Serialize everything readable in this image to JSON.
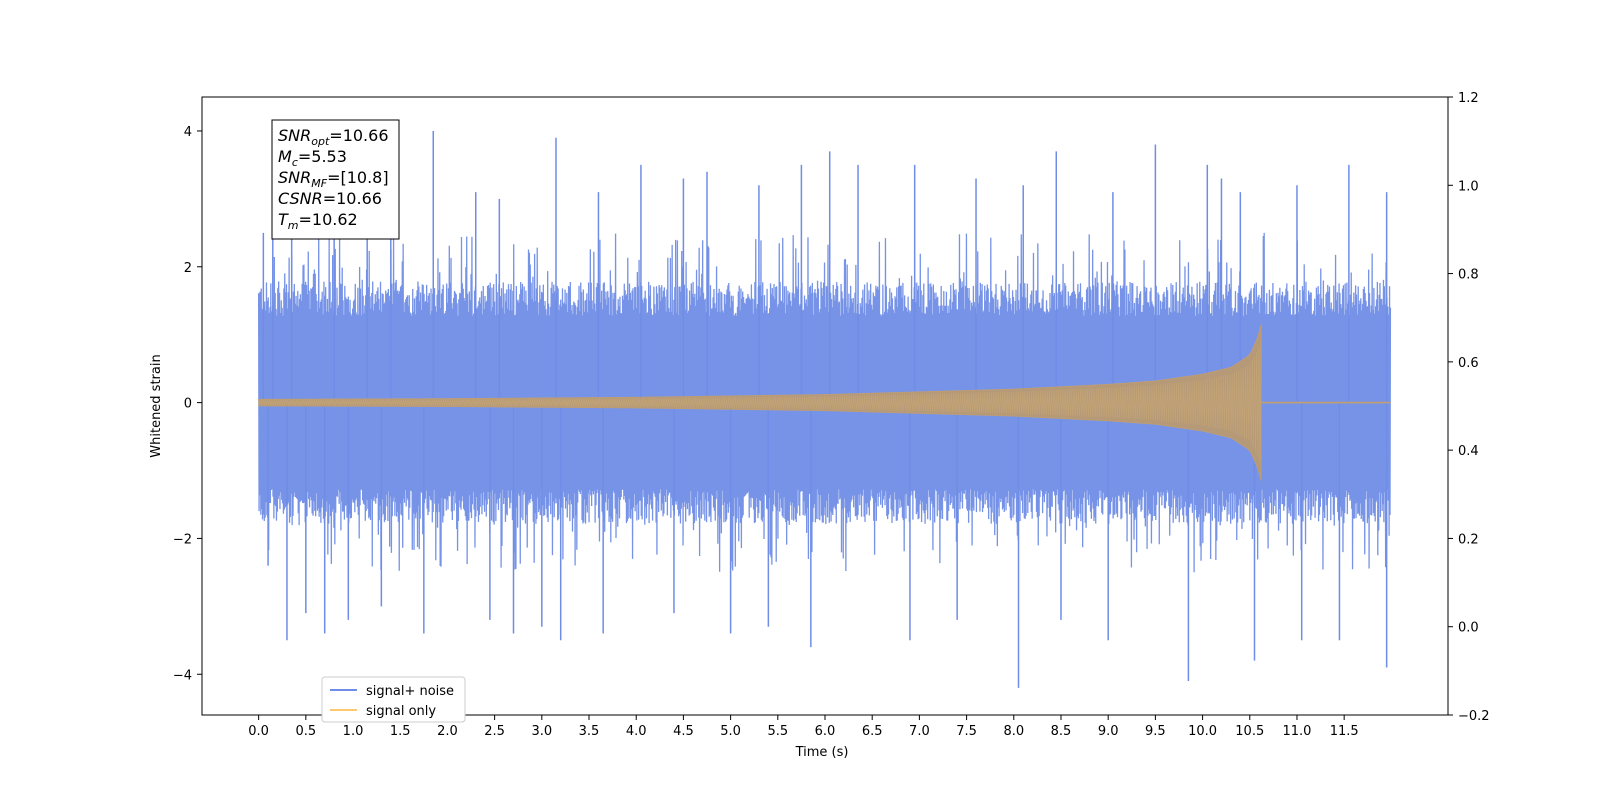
{
  "chart_data": {
    "type": "line",
    "xlabel": "Time (s)",
    "ylabel": "Whitened strain",
    "xlim": [
      -0.6,
      12.6
    ],
    "ylim": [
      -4.6,
      4.5
    ],
    "y2lim": [
      -0.2,
      1.2
    ],
    "grid": false,
    "x_ticks": [
      "0.0",
      "0.5",
      "1.0",
      "1.5",
      "2.0",
      "2.5",
      "3.0",
      "3.5",
      "4.0",
      "4.5",
      "5.0",
      "5.5",
      "6.0",
      "6.5",
      "7.0",
      "7.5",
      "8.0",
      "8.5",
      "9.0",
      "9.5",
      "10.0",
      "10.5",
      "11.0",
      "11.5"
    ],
    "y_ticks": [
      "4",
      "2",
      "0",
      "−2",
      "−4"
    ],
    "y2_ticks": [
      "1.2",
      "1.0",
      "0.8",
      "0.6",
      "0.4",
      "0.2",
      "0.0",
      "−0.2"
    ],
    "legend_position": "lower-left",
    "series": [
      {
        "name": "signal+ noise",
        "color": "#6f8de6",
        "x_range": [
          0.0,
          11.99
        ],
        "body_amplitude": 1.7,
        "peak_max": [
          [
            0.05,
            2.5
          ],
          [
            0.15,
            2.6
          ],
          [
            0.35,
            2.8
          ],
          [
            0.8,
            3.2
          ],
          [
            1.15,
            3.4
          ],
          [
            1.4,
            3.2
          ],
          [
            1.85,
            4.0
          ],
          [
            2.3,
            3.1
          ],
          [
            2.55,
            3.0
          ],
          [
            3.15,
            3.9
          ],
          [
            3.6,
            3.1
          ],
          [
            4.05,
            3.5
          ],
          [
            4.5,
            3.3
          ],
          [
            4.75,
            3.4
          ],
          [
            5.3,
            3.2
          ],
          [
            5.75,
            3.5
          ],
          [
            6.05,
            3.7
          ],
          [
            6.35,
            3.5
          ],
          [
            6.95,
            3.5
          ],
          [
            7.6,
            3.3
          ],
          [
            8.1,
            3.2
          ],
          [
            8.45,
            3.7
          ],
          [
            9.05,
            3.1
          ],
          [
            9.5,
            3.8
          ],
          [
            10.05,
            3.5
          ],
          [
            10.2,
            3.3
          ],
          [
            10.4,
            3.1
          ],
          [
            11.0,
            3.2
          ],
          [
            11.55,
            3.5
          ],
          [
            11.95,
            3.1
          ]
        ],
        "peak_min": [
          [
            0.1,
            -2.4
          ],
          [
            0.3,
            -3.5
          ],
          [
            0.5,
            -3.1
          ],
          [
            0.7,
            -3.4
          ],
          [
            0.95,
            -3.2
          ],
          [
            1.3,
            -3.0
          ],
          [
            1.75,
            -3.4
          ],
          [
            2.45,
            -3.2
          ],
          [
            2.7,
            -3.4
          ],
          [
            3.0,
            -3.3
          ],
          [
            3.2,
            -3.5
          ],
          [
            3.65,
            -3.4
          ],
          [
            4.4,
            -3.1
          ],
          [
            5.0,
            -3.4
          ],
          [
            5.4,
            -3.3
          ],
          [
            5.85,
            -3.6
          ],
          [
            6.9,
            -3.5
          ],
          [
            7.4,
            -3.2
          ],
          [
            8.05,
            -4.2
          ],
          [
            8.5,
            -3.2
          ],
          [
            9.0,
            -3.5
          ],
          [
            9.85,
            -4.1
          ],
          [
            10.55,
            -3.8
          ],
          [
            11.05,
            -3.5
          ],
          [
            11.45,
            -3.5
          ],
          [
            11.95,
            -3.9
          ]
        ]
      },
      {
        "name": "signal only",
        "color": "#ffc86e",
        "x_range": [
          0.0,
          11.99
        ],
        "chirp_end": 10.62,
        "peak_amplitude": 1.15,
        "envelope": [
          [
            0.0,
            0.05
          ],
          [
            2.0,
            0.06
          ],
          [
            4.0,
            0.08
          ],
          [
            6.0,
            0.12
          ],
          [
            8.0,
            0.2
          ],
          [
            9.0,
            0.27
          ],
          [
            9.5,
            0.32
          ],
          [
            10.0,
            0.42
          ],
          [
            10.3,
            0.52
          ],
          [
            10.5,
            0.7
          ],
          [
            10.58,
            0.95
          ],
          [
            10.62,
            1.15
          ]
        ]
      }
    ],
    "annotation": [
      {
        "main": "SNR",
        "sub": "opt",
        "value": "=10.66"
      },
      {
        "main": "M",
        "sub": "c",
        "value": "=5.53"
      },
      {
        "main": "SNR",
        "sub": "MF",
        "value": "=[10.8]"
      },
      {
        "main": "CSNR",
        "sub": "",
        "value": "=10.66"
      },
      {
        "main": "T",
        "sub": "m",
        "value": "=10.62"
      }
    ]
  }
}
